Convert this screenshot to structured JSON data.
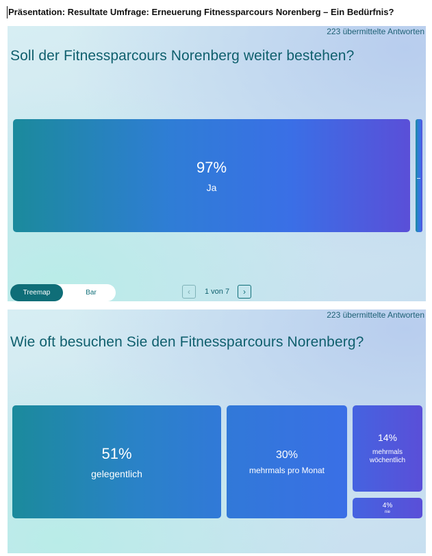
{
  "document_title": "Präsentation: Resultate Umfrage: Erneuerung Fitnessparcours Norenberg – Ein Bedürfnis?",
  "slides": [
    {
      "responses": "223 übermittelte Antworten",
      "question": "Soll der Fitnessparcours Norenberg weiter bestehen?",
      "view_toggle": {
        "active": "Treemap",
        "inactive": "Bar"
      },
      "pager": {
        "prev_icon": "chevron-left-icon",
        "next_icon": "chevron-right-icon",
        "text": "1 von 7"
      }
    },
    {
      "responses": "223 übermittelte Antworten",
      "question": "Wie oft besuchen Sie den Fitnessparcours Norenberg?"
    }
  ],
  "chart_data": [
    {
      "type": "treemap",
      "title": "Soll der Fitnessparcours Norenberg weiter bestehen?",
      "items": [
        {
          "label": "Ja",
          "value": 97,
          "display": "97%"
        },
        {
          "label": "",
          "value": 3,
          "display": ""
        }
      ]
    },
    {
      "type": "treemap",
      "title": "Wie oft besuchen Sie den Fitnessparcours Norenberg?",
      "items": [
        {
          "label": "gelegentlich",
          "value": 51,
          "display": "51%"
        },
        {
          "label": "mehrmals pro Monat",
          "value": 30,
          "display": "30%"
        },
        {
          "label": "mehrmals wöchentlich",
          "value": 14,
          "display": "14%"
        },
        {
          "label": "nie",
          "value": 4,
          "display": "4%"
        }
      ]
    }
  ],
  "colors": {
    "title_teal": "#0f5f6d",
    "toggle_active": "#0f6e78",
    "tile_start": "#1b8a9c",
    "tile_mid": "#3a6fe6",
    "tile_end": "#5a4fd8"
  }
}
